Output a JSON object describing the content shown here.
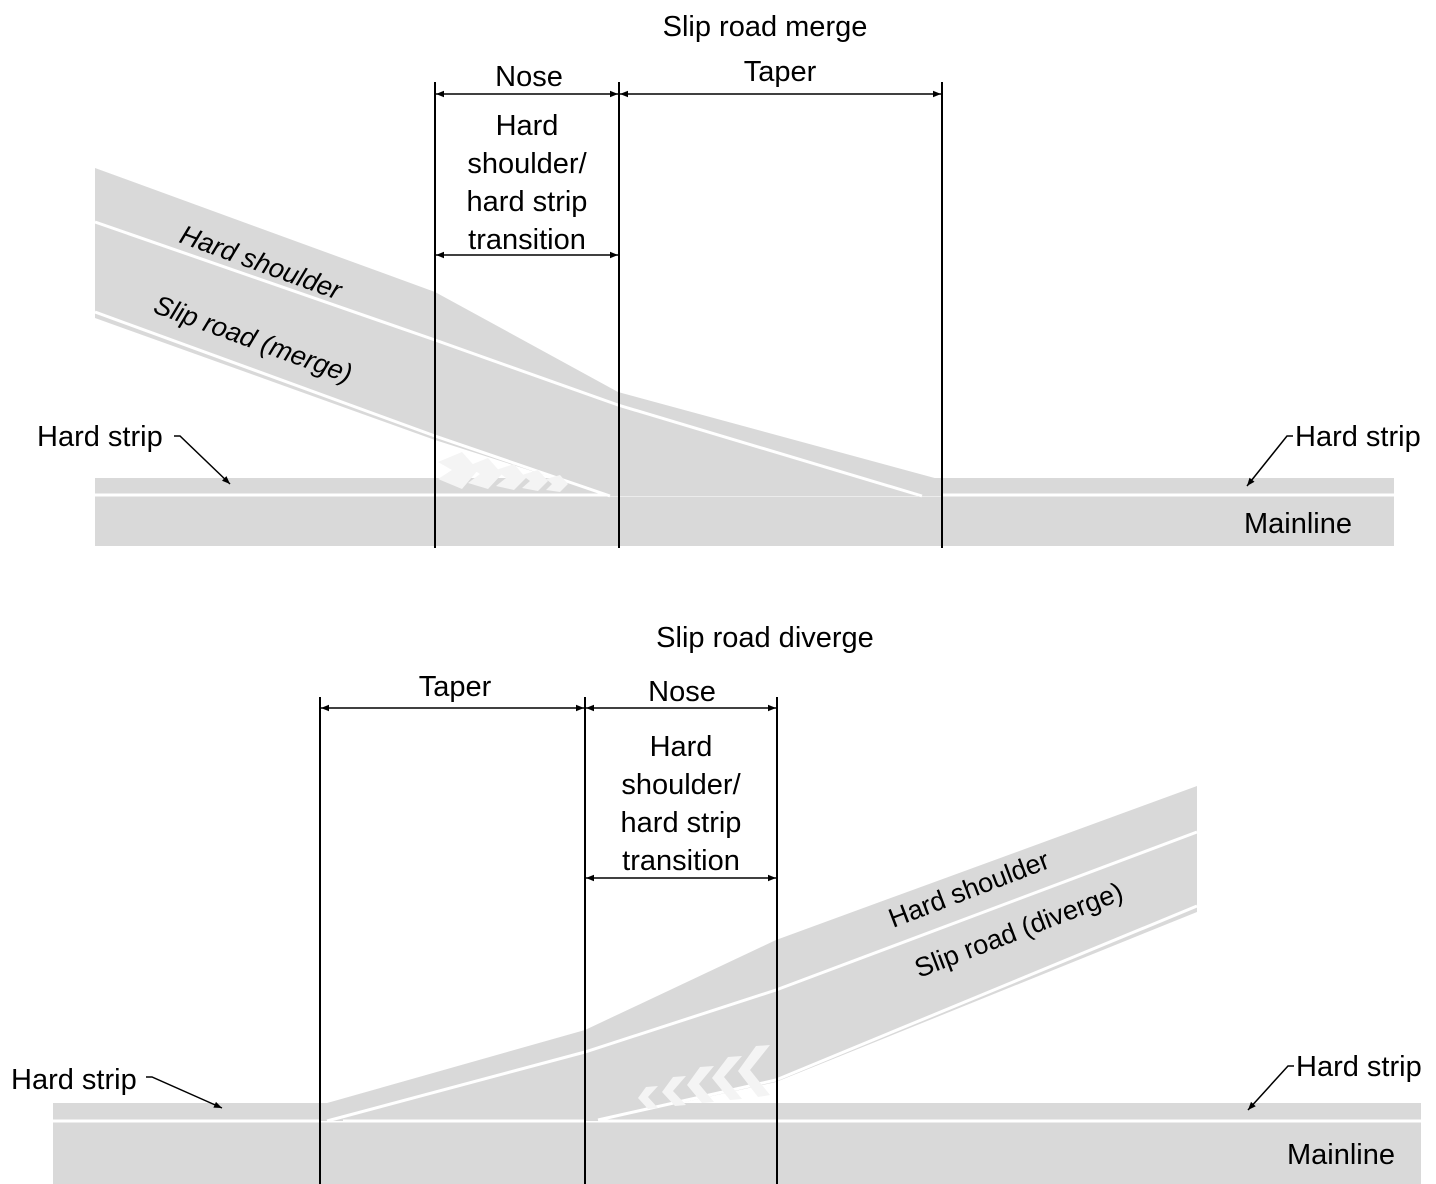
{
  "colors": {
    "road": "#d9d9d9",
    "marking": "#ffffff",
    "line": "#000000"
  },
  "merge": {
    "title": "Slip road merge",
    "nose": "Nose",
    "taper": "Taper",
    "transition": [
      "Hard",
      "shoulder/",
      "hard strip",
      "transition"
    ],
    "hard_shoulder": "Hard shoulder",
    "slip_road": "Slip road (merge)",
    "hard_strip_left": "Hard strip",
    "hard_strip_right": "Hard strip",
    "mainline": "Mainline"
  },
  "diverge": {
    "title": "Slip road diverge",
    "nose": "Nose",
    "taper": "Taper",
    "transition": [
      "Hard",
      "shoulder/",
      "hard strip",
      "transition"
    ],
    "hard_shoulder": "Hard shoulder",
    "slip_road": "Slip road (diverge)",
    "hard_strip_left": "Hard strip",
    "hard_strip_right": "Hard strip",
    "mainline": "Mainline"
  }
}
